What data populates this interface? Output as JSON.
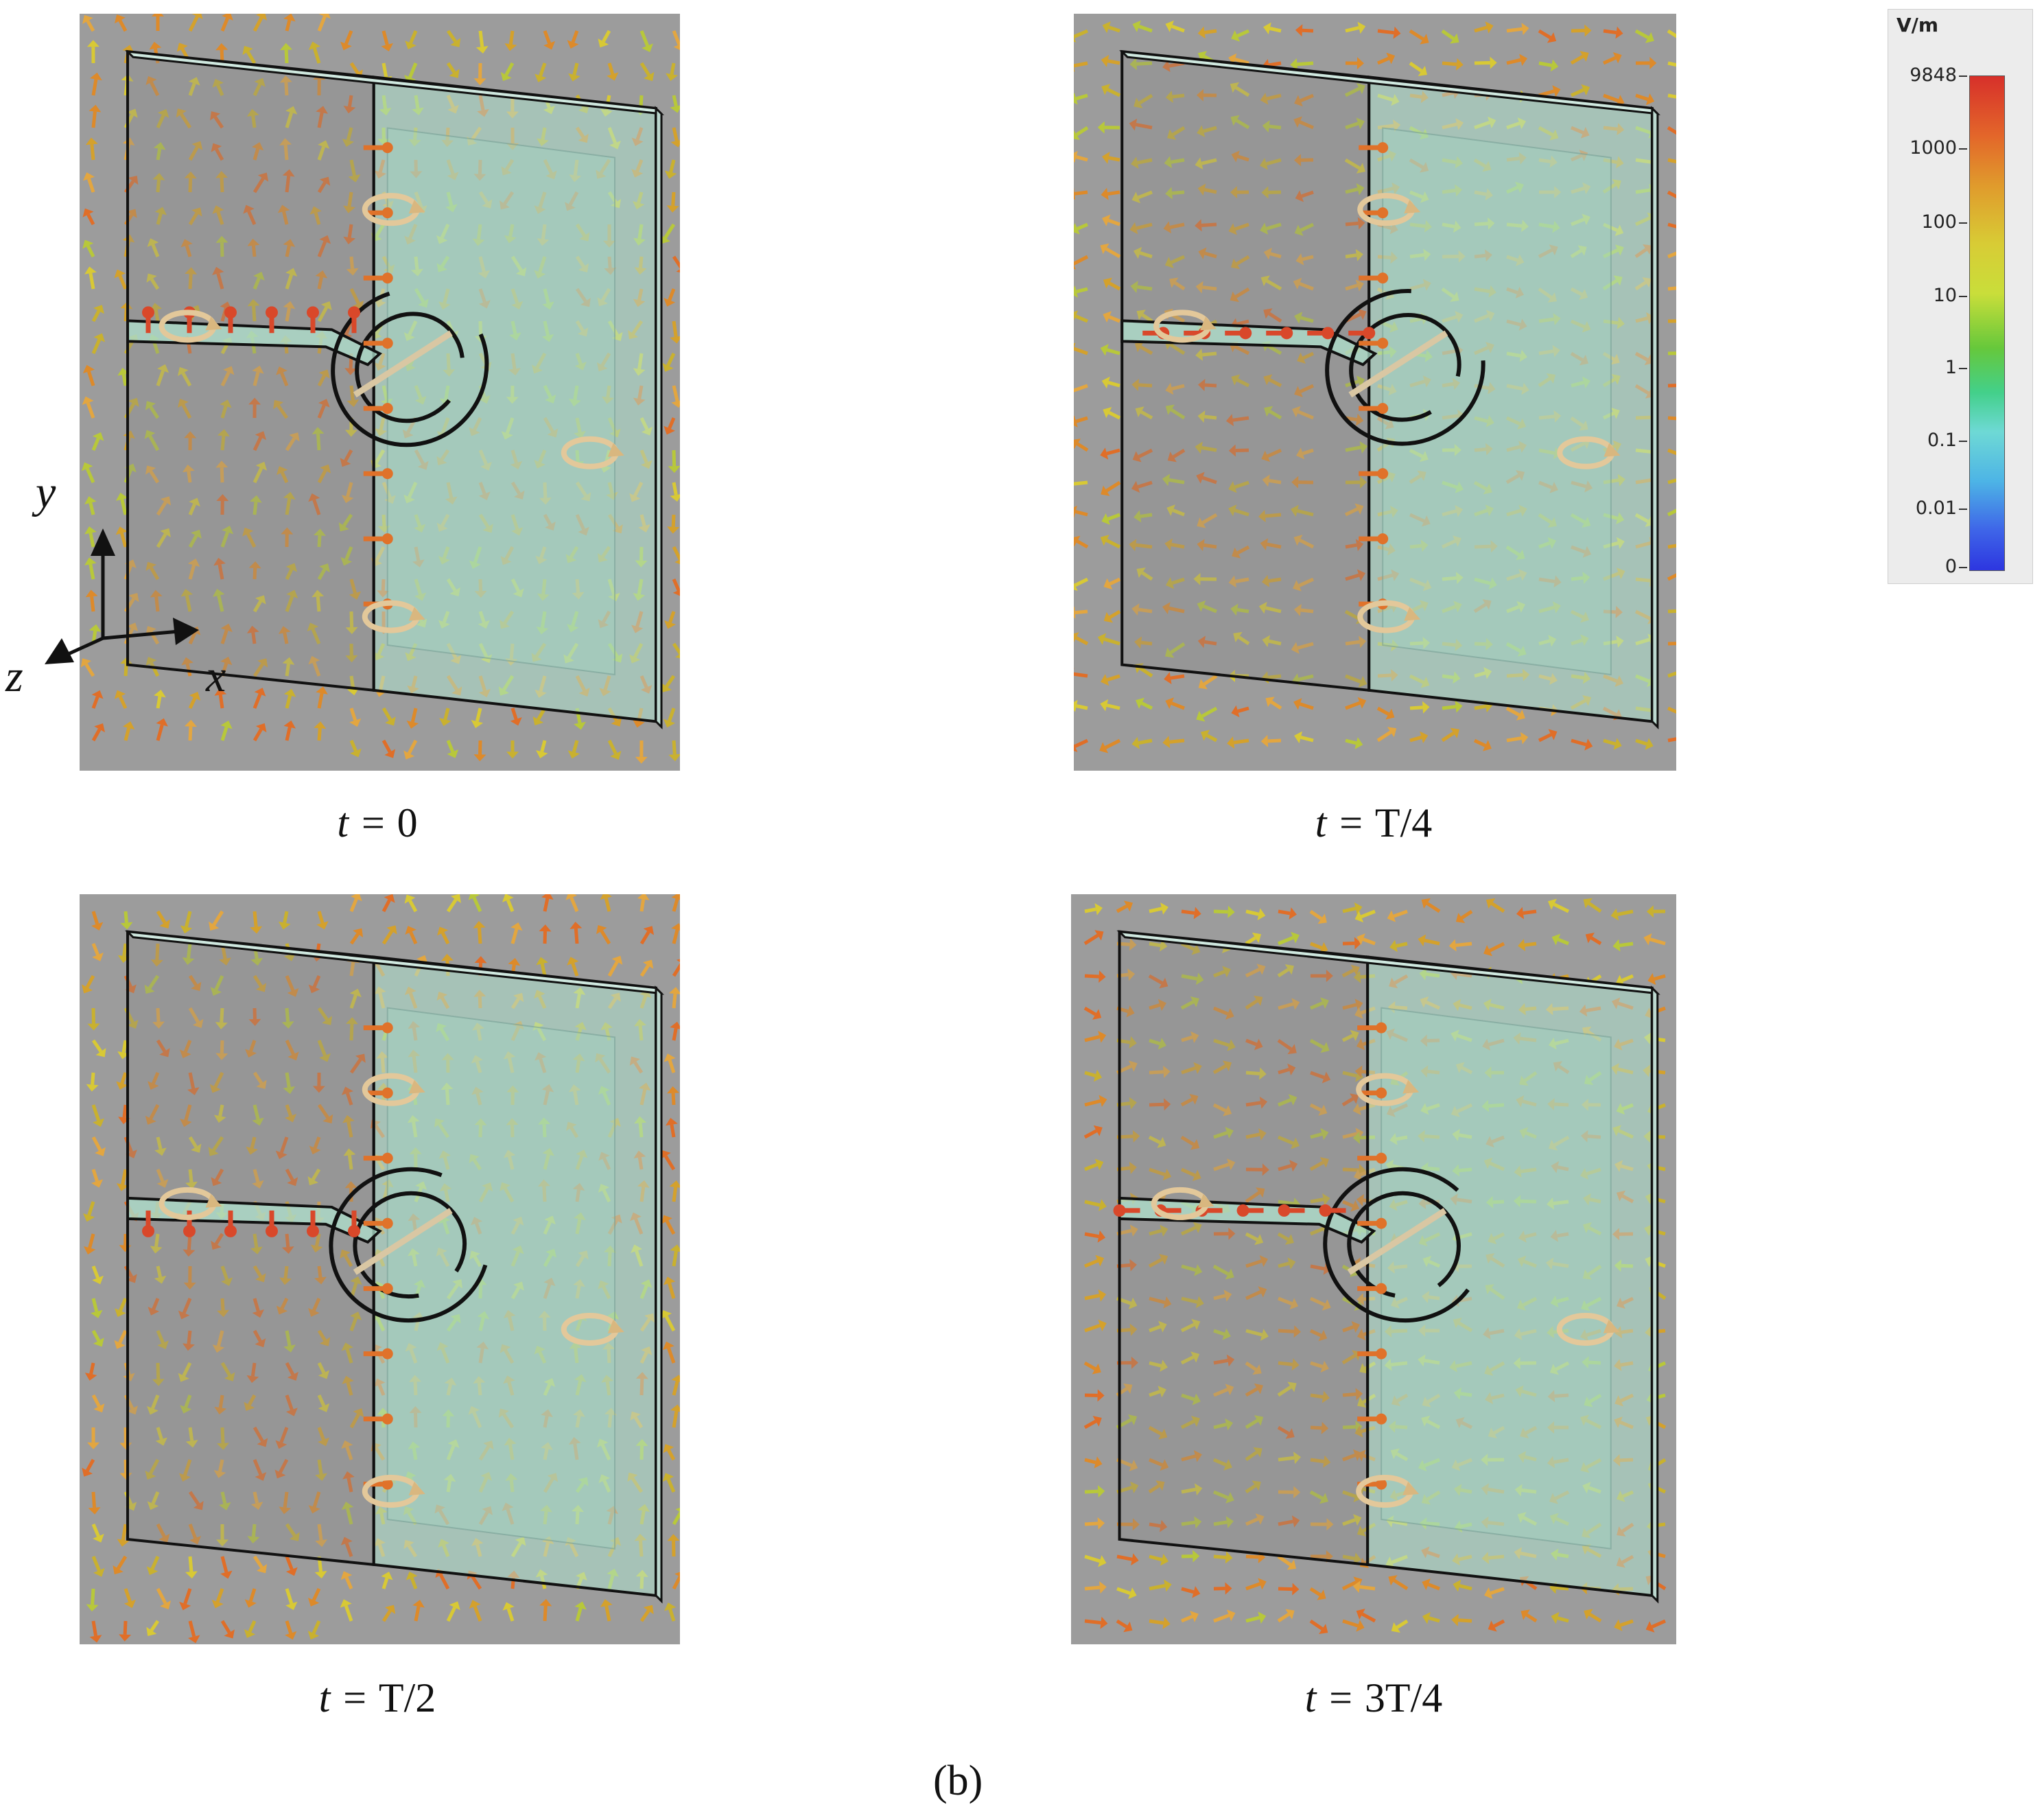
{
  "panels": [
    {
      "caption_prefix": "t = ",
      "caption_value": "0"
    },
    {
      "caption_prefix": "t = ",
      "caption_value": "T/4"
    },
    {
      "caption_prefix": "t = ",
      "caption_value": "T/2"
    },
    {
      "caption_prefix": "t = ",
      "caption_value": "3T/4"
    }
  ],
  "axes": {
    "y": "y",
    "z": "z",
    "x": "x"
  },
  "legend": {
    "unit": "V/m",
    "ticks": [
      "9848",
      "1000",
      "100",
      "10",
      "1",
      "0.1",
      "0.01",
      "0"
    ],
    "colors": [
      "#d7302a",
      "#e09a2c",
      "#d8cc35",
      "#66c83b",
      "#43d08a",
      "#4db4e6",
      "#2d36e0"
    ]
  },
  "figure_label": "(b)"
}
